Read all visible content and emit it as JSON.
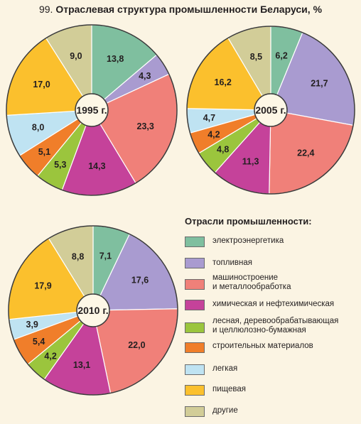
{
  "title": {
    "number": "99.",
    "text": "Отраслевая структура промышленности Беларуси, %"
  },
  "legend": {
    "title": "Отрасли промышленности:",
    "items": [
      {
        "label": "электроэнергетика",
        "color": "#7fbf9f"
      },
      {
        "label": "топливная",
        "color": "#a99bd0"
      },
      {
        "label": "машиностроение\nи металлообработка",
        "color": "#f08079"
      },
      {
        "label": "химическая и нефтехимическая",
        "color": "#c5429a"
      },
      {
        "label": "лесная, деревообрабатывающая\nи целлюлозно-бумажная",
        "color": "#9bc53d"
      },
      {
        "label": "строительных материалов",
        "color": "#f07e2a"
      },
      {
        "label": "легкая",
        "color": "#bfe3f2"
      },
      {
        "label": "пищевая",
        "color": "#fbc02d"
      },
      {
        "label": "другие",
        "color": "#d2cd98"
      }
    ]
  },
  "chart_data": [
    {
      "type": "pie",
      "center_label": "1995 г.",
      "categories": [
        "электроэнергетика",
        "топливная",
        "машиностроение и металлообработка",
        "химическая и нефтехимическая",
        "лесная, деревообрабатывающая и целлюлозно-бумажная",
        "строительных материалов",
        "легкая",
        "пищевая",
        "другие"
      ],
      "values": [
        13.8,
        4.3,
        23.3,
        14.3,
        5.3,
        5.1,
        8.0,
        17.0,
        9.0
      ],
      "value_labels": [
        "13,8",
        "4,3",
        "23,3",
        "14,3",
        "5,3",
        "5,1",
        "8,0",
        "17,0",
        "9,0"
      ]
    },
    {
      "type": "pie",
      "center_label": "2005 г.",
      "categories": [
        "электроэнергетика",
        "топливная",
        "машиностроение и металлообработка",
        "химическая и нефтехимическая",
        "лесная, деревообрабатывающая и целлюлозно-бумажная",
        "строительных материалов",
        "легкая",
        "пищевая",
        "другие"
      ],
      "values": [
        6.2,
        21.7,
        22.4,
        11.3,
        4.8,
        4.2,
        4.7,
        16.2,
        8.5
      ],
      "value_labels": [
        "6,2",
        "21,7",
        "22,4",
        "11,3",
        "4,8",
        "4,2",
        "4,7",
        "16,2",
        "8,5"
      ]
    },
    {
      "type": "pie",
      "center_label": "2010 г.",
      "categories": [
        "электроэнергетика",
        "топливная",
        "машиностроение и металлообработка",
        "химическая и нефтехимическая",
        "лесная, деревообрабатывающая и целлюлозно-бумажная",
        "строительных материалов",
        "легкая",
        "пищевая",
        "другие"
      ],
      "values": [
        7.1,
        17.6,
        22.0,
        13.1,
        4.2,
        5.4,
        3.9,
        17.9,
        8.8
      ],
      "value_labels": [
        "7,1",
        "17,6",
        "22,0",
        "13,1",
        "4,2",
        "5,4",
        "3,9",
        "17,9",
        "8,8"
      ]
    }
  ]
}
